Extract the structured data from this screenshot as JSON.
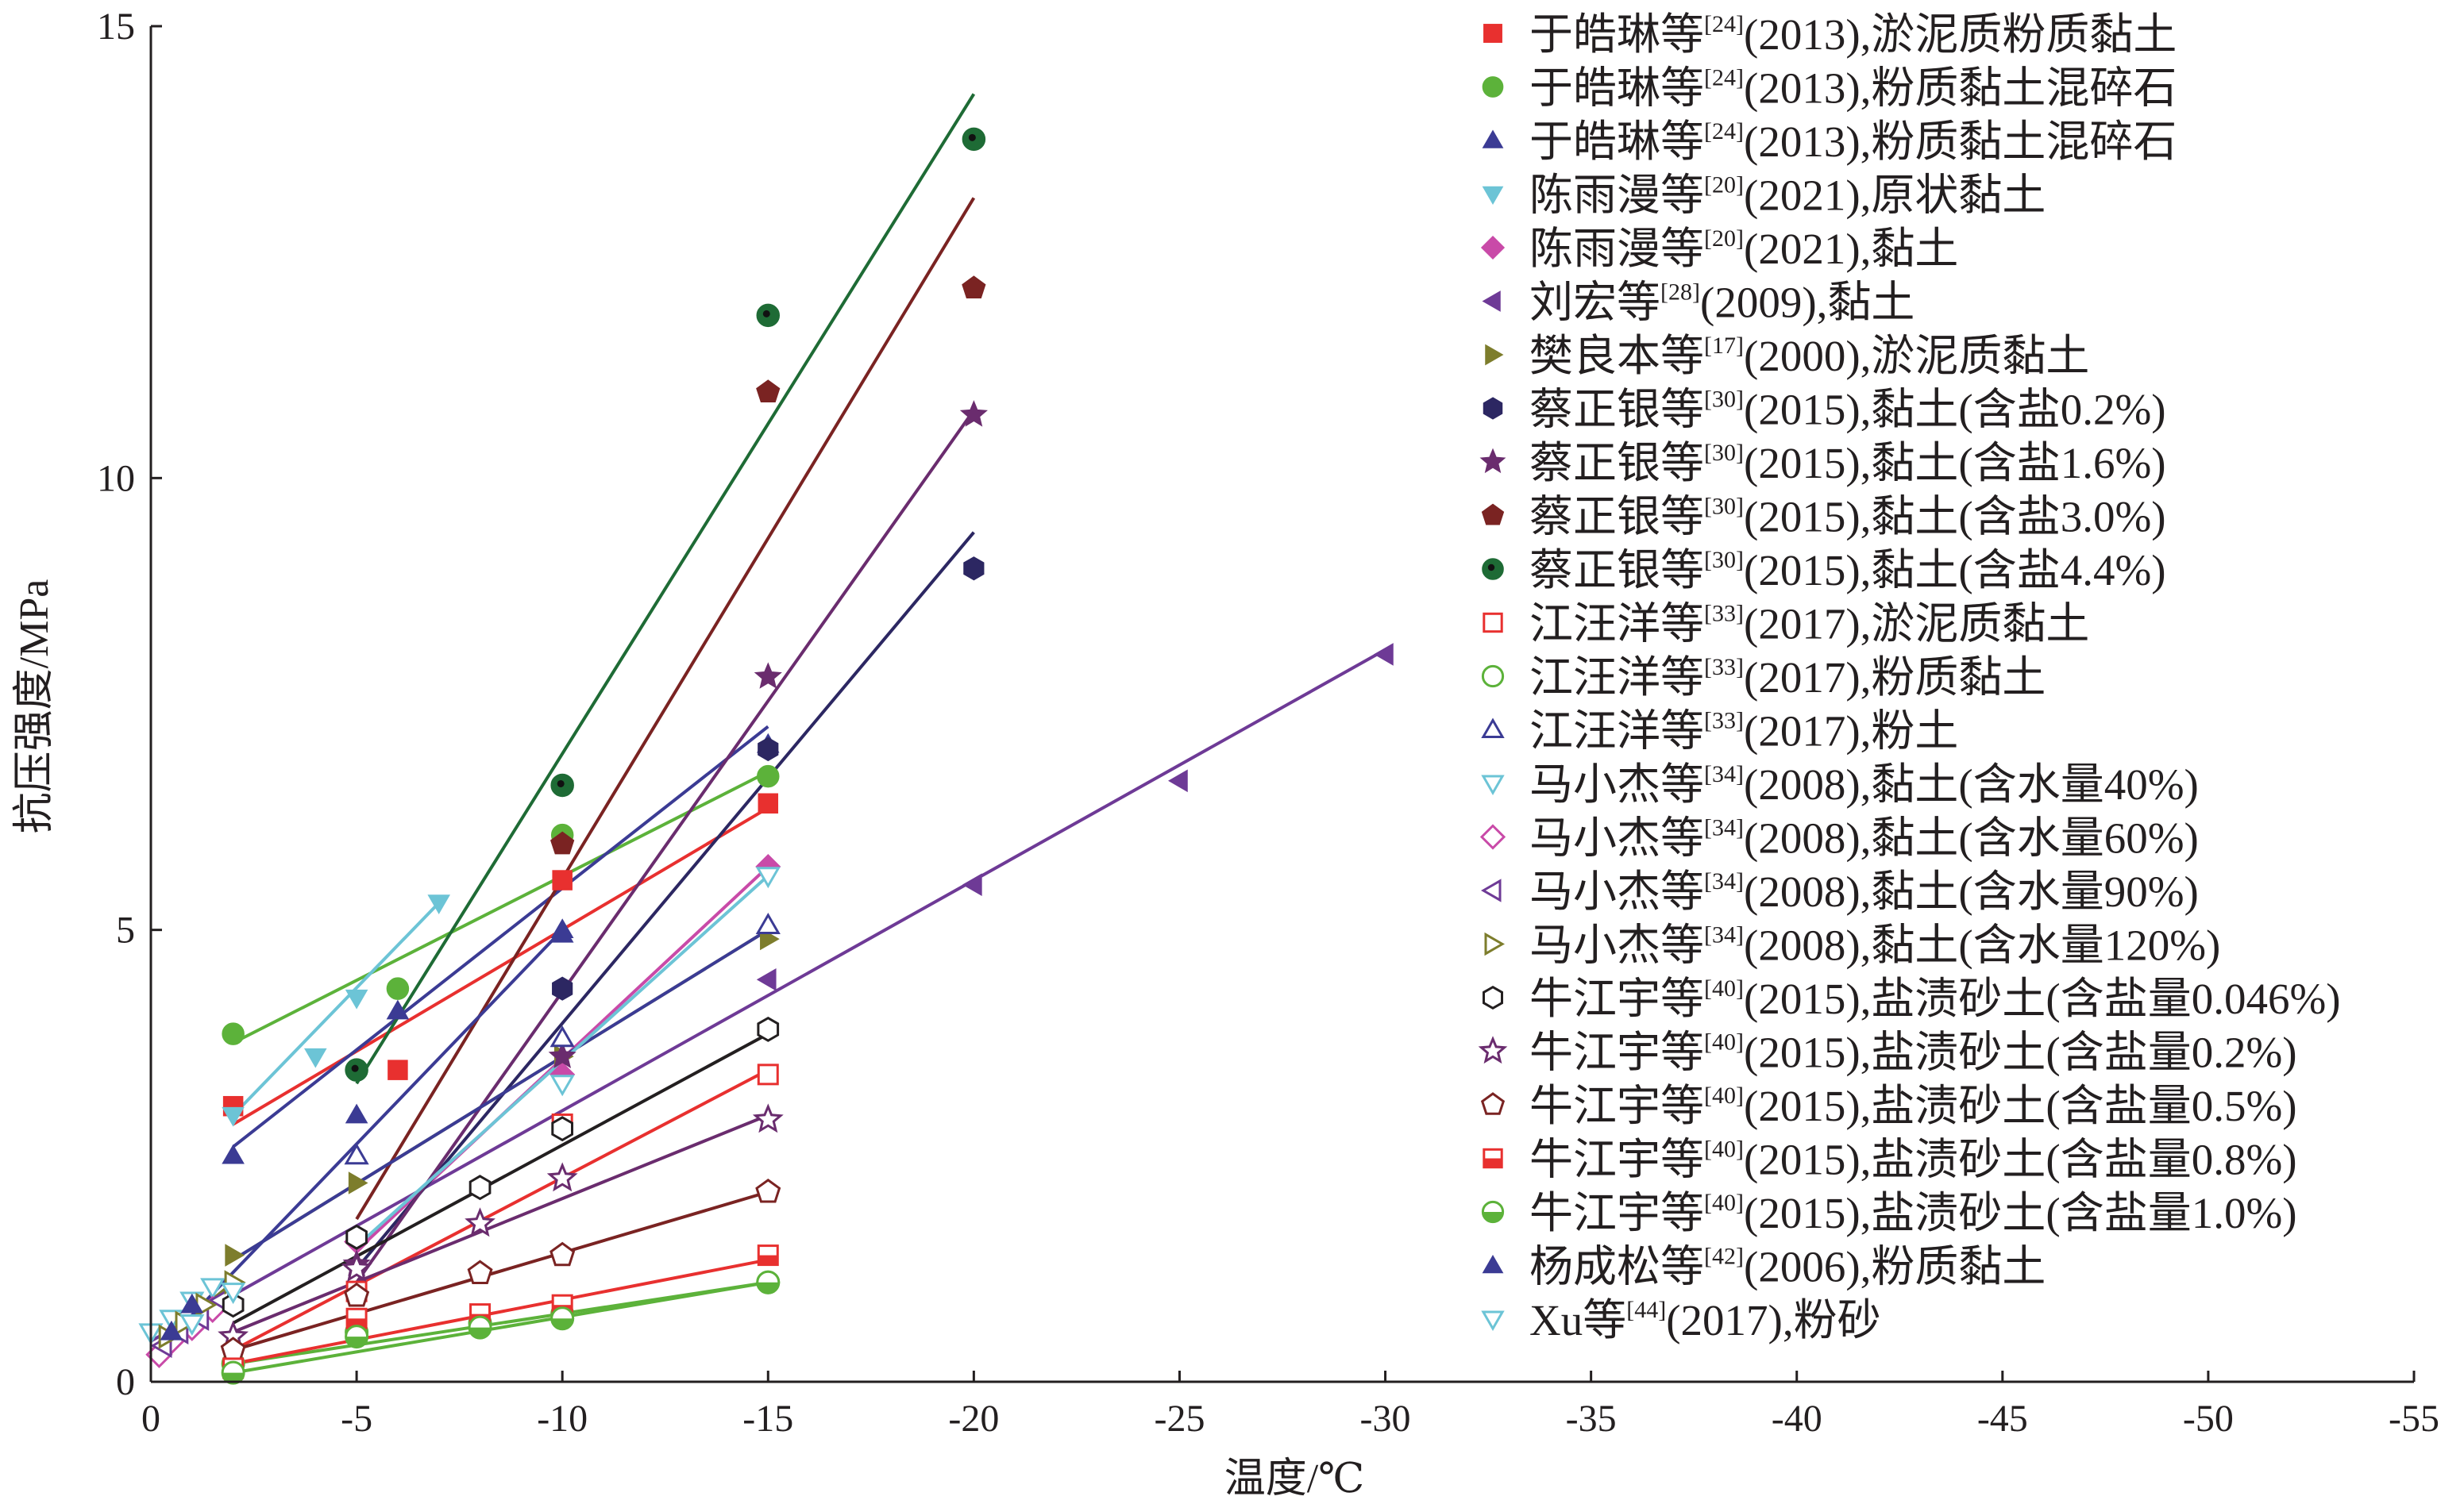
{
  "chart_data": {
    "type": "scatter",
    "title": "",
    "xlabel": "温度/℃",
    "ylabel": "抗压强度/MPa",
    "xlim": [
      0,
      -55
    ],
    "ylim": [
      0,
      15
    ],
    "xticks": [
      0,
      -5,
      -10,
      -15,
      -20,
      -25,
      -30,
      -35,
      -40,
      -45,
      -50,
      -55
    ],
    "yticks": [
      0,
      5,
      10,
      15
    ],
    "xtick_labels": [
      "0",
      "-5",
      "-10",
      "-15",
      "-20",
      "-25",
      "-30",
      "-35",
      "-40",
      "-45",
      "-50",
      "-55"
    ],
    "ytick_labels": [
      "0",
      "5",
      "10",
      "15"
    ],
    "legend_position": "right",
    "series": [
      {
        "name_pre": "于皓琳等",
        "ref": "[24]",
        "name_post": "(2013),淤泥质粉质黏土",
        "marker": "square",
        "filled": true,
        "color": "#e8302f",
        "points": [
          [
            -2,
            3.05
          ],
          [
            -6,
            3.45
          ],
          [
            -10,
            5.55
          ],
          [
            -15,
            6.4
          ]
        ],
        "line": [
          [
            -2,
            2.85
          ],
          [
            -15,
            6.35
          ]
        ]
      },
      {
        "name_pre": "于皓琳等",
        "ref": "[24]",
        "name_post": "(2013),粉质黏土混碎石",
        "marker": "circle",
        "filled": true,
        "color": "#5cb23a",
        "points": [
          [
            -2,
            3.85
          ],
          [
            -6,
            4.35
          ],
          [
            -10,
            6.05
          ],
          [
            -15,
            6.7
          ]
        ],
        "line": [
          [
            -2,
            3.75
          ],
          [
            -15,
            6.75
          ]
        ]
      },
      {
        "name_pre": "于皓琳等",
        "ref": "[24]",
        "name_post": "(2013),粉质黏土混碎石",
        "marker": "triangle-up",
        "filled": true,
        "color": "#3b3b94",
        "points": [
          [
            -2,
            2.5
          ],
          [
            -6,
            4.1
          ],
          [
            -10,
            5.0
          ],
          [
            -15,
            7.05
          ]
        ],
        "line": [
          [
            -2,
            2.6
          ],
          [
            -15,
            7.25
          ]
        ]
      },
      {
        "name_pre": "陈雨漫等",
        "ref": "[20]",
        "name_post": "(2021),原状黏土",
        "marker": "triangle-down",
        "filled": true,
        "color": "#6cc4d6",
        "points": [
          [
            -2,
            2.95
          ],
          [
            -4,
            3.6
          ],
          [
            -5,
            4.25
          ],
          [
            -7,
            5.3
          ]
        ],
        "line": [
          [
            -2,
            2.95
          ],
          [
            -7,
            5.3
          ]
        ]
      },
      {
        "name_pre": "陈雨漫等",
        "ref": "[20]",
        "name_post": "(2021),黏土",
        "marker": "diamond",
        "filled": true,
        "color": "#c94aa8",
        "points": [
          [
            -5,
            1.55
          ],
          [
            -10,
            3.4
          ],
          [
            -15,
            5.7
          ]
        ],
        "line": [
          [
            -5,
            1.45
          ],
          [
            -15,
            5.7
          ]
        ]
      },
      {
        "name_pre": "刘宏等",
        "ref": "[28]",
        "name_post": "(2009),黏土",
        "marker": "triangle-left",
        "filled": true,
        "color": "#6e3a96",
        "points": [
          [
            -15,
            4.45
          ],
          [
            -20,
            5.5
          ],
          [
            -25,
            6.65
          ],
          [
            -30,
            8.05
          ]
        ],
        "line": [
          [
            0,
            0.45
          ],
          [
            -30,
            8.1
          ]
        ]
      },
      {
        "name_pre": "樊良本等",
        "ref": "[17]",
        "name_post": "(2000),淤泥质黏土",
        "marker": "triangle-right",
        "filled": true,
        "color": "#7d7d2c",
        "points": [
          [
            -2,
            1.4
          ],
          [
            -5,
            2.2
          ],
          [
            -10,
            3.6
          ],
          [
            -15,
            4.9
          ]
        ],
        "line": [
          [
            -2,
            1.35
          ],
          [
            -15,
            5.0
          ]
        ]
      },
      {
        "name_pre": "蔡正银等",
        "ref": "[30]",
        "name_post": "(2015),黏土(含盐0.2%)",
        "marker": "hexagon",
        "filled": true,
        "color": "#2c2762",
        "points": [
          [
            -10,
            4.35
          ],
          [
            -15,
            7.0
          ],
          [
            -20,
            9.0
          ]
        ],
        "line": [
          [
            -5,
            1.25
          ],
          [
            -20,
            9.4
          ]
        ]
      },
      {
        "name_pre": "蔡正银等",
        "ref": "[30]",
        "name_post": "(2015),黏土(含盐1.6%)",
        "marker": "star",
        "filled": true,
        "color": "#6a2c6e",
        "points": [
          [
            -5,
            1.3
          ],
          [
            -10,
            3.6
          ],
          [
            -15,
            7.8
          ],
          [
            -20,
            10.7
          ]
        ],
        "line": [
          [
            -5,
            1.1
          ],
          [
            -20,
            10.75
          ]
        ]
      },
      {
        "name_pre": "蔡正银等",
        "ref": "[30]",
        "name_post": "(2015),黏土(含盐3.0%)",
        "marker": "pentagon",
        "filled": true,
        "color": "#7a2322",
        "points": [
          [
            -10,
            5.95
          ],
          [
            -15,
            10.95
          ],
          [
            -20,
            12.1
          ]
        ],
        "line": [
          [
            -5,
            1.8
          ],
          [
            -20,
            13.1
          ]
        ]
      },
      {
        "name_pre": "蔡正银等",
        "ref": "[30]",
        "name_post": "(2015),黏土(含盐4.4%)",
        "marker": "circle-dot",
        "filled": true,
        "color": "#1e6b35",
        "points": [
          [
            -5,
            3.45
          ],
          [
            -10,
            6.6
          ],
          [
            -15,
            11.8
          ],
          [
            -20,
            13.75
          ]
        ],
        "line": [
          [
            -5,
            3.3
          ],
          [
            -20,
            14.25
          ]
        ]
      },
      {
        "name_pre": "江汪洋等",
        "ref": "[33]",
        "name_post": "(2017),淤泥质黏土",
        "marker": "square",
        "filled": false,
        "color": "#e8302f",
        "points": [
          [
            -5,
            1.0
          ],
          [
            -10,
            2.85
          ],
          [
            -15,
            3.4
          ]
        ],
        "line": [
          [
            -2,
            0.35
          ],
          [
            -15,
            3.45
          ]
        ]
      },
      {
        "name_pre": "江汪洋等",
        "ref": "[33]",
        "name_post": "(2017),粉质黏土",
        "marker": "circle",
        "filled": false,
        "color": "#5cb23a",
        "points": [
          [
            -2,
            0.2
          ],
          [
            -5,
            0.55
          ],
          [
            -8,
            0.65
          ],
          [
            -10,
            0.75
          ],
          [
            -15,
            1.1
          ]
        ],
        "line": [
          [
            -2,
            0.2
          ],
          [
            -15,
            1.1
          ]
        ]
      },
      {
        "name_pre": "江汪洋等",
        "ref": "[33]",
        "name_post": "(2017),粉土",
        "marker": "triangle-up",
        "filled": false,
        "color": "#3b3b94",
        "points": [
          [
            -5,
            2.5
          ],
          [
            -10,
            3.8
          ],
          [
            -15,
            5.05
          ]
        ],
        "line": [
          [
            -2,
            1.35
          ],
          [
            -15,
            5.0
          ]
        ]
      },
      {
        "name_pre": "马小杰等",
        "ref": "[34]",
        "name_post": "(2008),黏土(含水量40%)",
        "marker": "triangle-down",
        "filled": false,
        "color": "#6cc4d6",
        "points": [
          [
            0,
            0.55
          ],
          [
            -0.5,
            0.7
          ],
          [
            -1,
            0.9
          ],
          [
            -1.5,
            1.05
          ],
          [
            -10,
            3.3
          ],
          [
            -15,
            5.6
          ]
        ],
        "line": [
          [
            -5,
            1.5
          ],
          [
            -15,
            5.6
          ]
        ]
      },
      {
        "name_pre": "马小杰等",
        "ref": "[34]",
        "name_post": "(2008),黏土(含水量60%)",
        "marker": "diamond",
        "filled": false,
        "color": "#c94aa8",
        "points": [
          [
            -0.2,
            0.3
          ],
          [
            -0.5,
            0.45
          ],
          [
            -1,
            0.6
          ],
          [
            -1.5,
            0.8
          ]
        ],
        "line": [
          [
            -0.2,
            0.3
          ],
          [
            -1.5,
            0.8
          ]
        ]
      },
      {
        "name_pre": "马小杰等",
        "ref": "[34]",
        "name_post": "(2008),黏土(含水量90%)",
        "marker": "triangle-left",
        "filled": false,
        "color": "#6e3a96",
        "points": [
          [
            -0.3,
            0.4
          ],
          [
            -0.7,
            0.55
          ],
          [
            -1.2,
            0.7
          ],
          [
            -1.7,
            0.9
          ]
        ],
        "line": [
          [
            -0.3,
            0.4
          ],
          [
            -1.7,
            0.9
          ]
        ]
      },
      {
        "name_pre": "马小杰等",
        "ref": "[34]",
        "name_post": "(2008),黏土(含水量120%)",
        "marker": "triangle-right",
        "filled": false,
        "color": "#7d7d2c",
        "points": [
          [
            -0.4,
            0.5
          ],
          [
            -0.8,
            0.65
          ],
          [
            -1.3,
            0.85
          ],
          [
            -2,
            1.1
          ]
        ],
        "line": [
          [
            -0.4,
            0.5
          ],
          [
            -2,
            1.1
          ]
        ]
      },
      {
        "name_pre": "牛江宇等",
        "ref": "[40]",
        "name_post": "(2015),盐渍砂土(含盐量0.046%)",
        "marker": "hexagon",
        "filled": false,
        "color": "#231f20",
        "points": [
          [
            -2,
            0.85
          ],
          [
            -5,
            1.6
          ],
          [
            -8,
            2.15
          ],
          [
            -10,
            2.8
          ],
          [
            -15,
            3.9
          ]
        ],
        "line": [
          [
            -2,
            0.65
          ],
          [
            -15,
            3.85
          ]
        ]
      },
      {
        "name_pre": "牛江宇等",
        "ref": "[40]",
        "name_post": "(2015),盐渍砂土(含盐量0.2%)",
        "marker": "star",
        "filled": false,
        "color": "#6a2c6e",
        "points": [
          [
            -2,
            0.5
          ],
          [
            -5,
            1.25
          ],
          [
            -8,
            1.75
          ],
          [
            -10,
            2.25
          ],
          [
            -15,
            2.9
          ]
        ],
        "line": [
          [
            -2,
            0.55
          ],
          [
            -15,
            2.95
          ]
        ]
      },
      {
        "name_pre": "牛江宇等",
        "ref": "[40]",
        "name_post": "(2015),盐渍砂土(含盐量0.5%)",
        "marker": "pentagon",
        "filled": false,
        "color": "#7a2322",
        "points": [
          [
            -2,
            0.35
          ],
          [
            -5,
            0.95
          ],
          [
            -8,
            1.2
          ],
          [
            -10,
            1.4
          ],
          [
            -15,
            2.1
          ]
        ],
        "line": [
          [
            -2,
            0.35
          ],
          [
            -15,
            2.1
          ]
        ]
      },
      {
        "name_pre": "牛江宇等",
        "ref": "[40]",
        "name_post": "(2015),盐渍砂土(含盐量0.8%)",
        "marker": "square-half",
        "filled": true,
        "color": "#e8302f",
        "points": [
          [
            -2,
            0.15
          ],
          [
            -5,
            0.7
          ],
          [
            -8,
            0.75
          ],
          [
            -10,
            0.85
          ],
          [
            -15,
            1.4
          ]
        ],
        "line": [
          [
            -2,
            0.2
          ],
          [
            -15,
            1.35
          ]
        ]
      },
      {
        "name_pre": "牛江宇等",
        "ref": "[40]",
        "name_post": "(2015),盐渍砂土(含盐量1.0%)",
        "marker": "circle-half",
        "filled": true,
        "color": "#5cb23a",
        "points": [
          [
            -2,
            0.1
          ],
          [
            -5,
            0.5
          ],
          [
            -8,
            0.6
          ],
          [
            -10,
            0.7
          ],
          [
            -15,
            1.1
          ]
        ],
        "line": [
          [
            -2,
            0.1
          ],
          [
            -15,
            1.1
          ]
        ]
      },
      {
        "name_pre": "杨成松等",
        "ref": "[42]",
        "name_post": "(2006),粉质黏土",
        "marker": "triangle-up",
        "filled": true,
        "color": "#3b3b94",
        "points": [
          [
            -0.5,
            0.55
          ],
          [
            -1,
            0.85
          ],
          [
            -5,
            2.95
          ],
          [
            -10,
            4.95
          ]
        ],
        "line": [
          [
            -0.5,
            0.5
          ],
          [
            -10,
            5.0
          ]
        ]
      },
      {
        "name_pre": "Xu等",
        "ref": "[44]",
        "name_post": "(2017),粉砂",
        "marker": "triangle-down",
        "filled": false,
        "color": "#6cc4d6",
        "points": [
          [
            -1,
            0.65
          ],
          [
            -2,
            1.0
          ]
        ],
        "line": [
          [
            -1,
            0.65
          ],
          [
            -2,
            1.0
          ]
        ]
      }
    ]
  }
}
